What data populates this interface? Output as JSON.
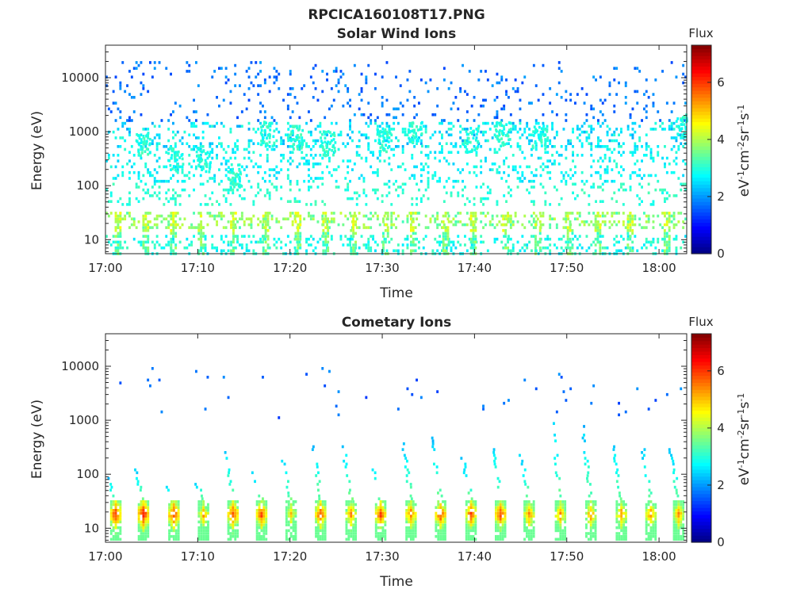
{
  "title": "RPCICA160108T17.PNG",
  "colormap": [
    "#00007f",
    "#0000ff",
    "#007fff",
    "#00ffff",
    "#7fff7f",
    "#ffff00",
    "#ff7f00",
    "#ff0000",
    "#7f0000"
  ],
  "chart_data": [
    {
      "type": "heatmap",
      "title": "Solar Wind Ions",
      "xlabel": "Time",
      "ylabel": "Energy (eV)",
      "x_ticks": [
        "17:00",
        "17:10",
        "17:20",
        "17:30",
        "17:40",
        "17:50",
        "18:00"
      ],
      "x_tick_minutes": [
        0,
        10,
        20,
        30,
        40,
        50,
        60
      ],
      "xlim_minutes": [
        0,
        63
      ],
      "y_scale": "log",
      "ylim": [
        5.5,
        40000
      ],
      "y_ticks": [
        10,
        100,
        1000,
        10000
      ],
      "y_tick_labels": [
        "10",
        "100",
        "1000",
        "10000"
      ],
      "colorbar": {
        "title": "Flux",
        "unit": "eV-1cm-2sr-1s-1",
        "range": [
          0,
          7.3
        ],
        "ticks": [
          0,
          2,
          4,
          6
        ],
        "tick_labels": [
          "0",
          "2",
          "4",
          "6"
        ]
      },
      "bands": [
        {
          "e_min": 5.5,
          "e_max": 12,
          "flux": [
            2.5,
            3.3
          ],
          "density": 0.22
        },
        {
          "e_min": 15,
          "e_max": 32,
          "flux": [
            3.2,
            4.2
          ],
          "density": 0.25
        },
        {
          "e_min": 40,
          "e_max": 120,
          "flux": [
            2.8,
            3.3
          ],
          "density": 0.14
        },
        {
          "e_min": 120,
          "e_max": 600,
          "flux": [
            2.4,
            3.1
          ],
          "density": 0.18
        },
        {
          "e_min": 500,
          "e_max": 1500,
          "flux": [
            2.1,
            3.1
          ],
          "density": 0.2
        },
        {
          "e_min": 1500,
          "e_max": 20000,
          "flux": [
            1.4,
            2.1
          ],
          "density": 0.07
        }
      ],
      "bursts": [
        {
          "t": 4,
          "e": 600,
          "flux": 3.0
        },
        {
          "t": 7.5,
          "e": 300,
          "flux": 3.0
        },
        {
          "t": 10.5,
          "e": 300,
          "flux": 3.0
        },
        {
          "t": 14,
          "e": 150,
          "flux": 3.0
        },
        {
          "t": 17.5,
          "e": 900,
          "flux": 3.0
        },
        {
          "t": 20.5,
          "e": 800,
          "flux": 3.0
        },
        {
          "t": 24,
          "e": 600,
          "flux": 3.0
        },
        {
          "t": 30,
          "e": 700,
          "flux": 3.0
        },
        {
          "t": 33.5,
          "e": 900,
          "flux": 3.0
        },
        {
          "t": 39.5,
          "e": 700,
          "flux": 3.0
        },
        {
          "t": 43,
          "e": 900,
          "flux": 3.0
        },
        {
          "t": 47,
          "e": 800,
          "flux": 3.0
        },
        {
          "t": 62.5,
          "e": 1300,
          "flux": 3.0
        }
      ],
      "low_stripe_minutes": [
        1,
        4,
        7,
        10,
        13.5,
        17,
        20.5,
        23.5,
        26.5,
        30,
        33,
        36.5,
        39.5,
        43,
        46.5,
        50,
        53,
        56.5,
        60.5
      ]
    },
    {
      "type": "heatmap",
      "title": "Cometary Ions",
      "xlabel": "Time",
      "ylabel": "Energy (eV)",
      "x_ticks": [
        "17:00",
        "17:10",
        "17:20",
        "17:30",
        "17:40",
        "17:50",
        "18:00"
      ],
      "x_tick_minutes": [
        0,
        10,
        20,
        30,
        40,
        50,
        60
      ],
      "xlim_minutes": [
        0,
        63
      ],
      "y_scale": "log",
      "ylim": [
        5.5,
        40000
      ],
      "y_ticks": [
        10,
        100,
        1000,
        10000
      ],
      "y_tick_labels": [
        "10",
        "100",
        "1000",
        "10000"
      ],
      "colorbar": {
        "title": "Flux",
        "unit": "eV-1cm-2sr-1s-1",
        "range": [
          0,
          7.3
        ],
        "ticks": [
          0,
          2,
          4,
          6
        ],
        "tick_labels": [
          "0",
          "2",
          "4",
          "6"
        ]
      },
      "peaks": [
        {
          "t": 1,
          "flux": 6.2,
          "top": 90
        },
        {
          "t": 4,
          "flux": 6.4,
          "top": 130
        },
        {
          "t": 7.3,
          "flux": 6.2,
          "top": 60
        },
        {
          "t": 10.5,
          "flux": 5.3,
          "top": 80
        },
        {
          "t": 13.7,
          "flux": 6.0,
          "top": 300
        },
        {
          "t": 16.8,
          "flux": 6.0,
          "top": 120
        },
        {
          "t": 20,
          "flux": 5.0,
          "top": 200
        },
        {
          "t": 23.2,
          "flux": 6.0,
          "top": 350
        },
        {
          "t": 26.5,
          "flux": 5.5,
          "top": 400
        },
        {
          "t": 29.7,
          "flux": 6.0,
          "top": 150
        },
        {
          "t": 33,
          "flux": 5.7,
          "top": 500
        },
        {
          "t": 36.2,
          "flux": 6.0,
          "top": 500
        },
        {
          "t": 39.5,
          "flux": 6.0,
          "top": 200
        },
        {
          "t": 42.7,
          "flux": 6.0,
          "top": 400
        },
        {
          "t": 45.8,
          "flux": 5.5,
          "top": 250
        },
        {
          "t": 49.2,
          "flux": 5.5,
          "top": 900
        },
        {
          "t": 52.5,
          "flux": 5.5,
          "top": 800
        },
        {
          "t": 55.8,
          "flux": 5.5,
          "top": 400
        },
        {
          "t": 59,
          "flux": 5.5,
          "top": 300
        },
        {
          "t": 62,
          "flux": 5.5,
          "top": 300
        }
      ],
      "sparse_high": {
        "e_min": 1000,
        "e_max": 10000,
        "flux": [
          1.3,
          2.0
        ],
        "density": 0.012
      }
    }
  ]
}
